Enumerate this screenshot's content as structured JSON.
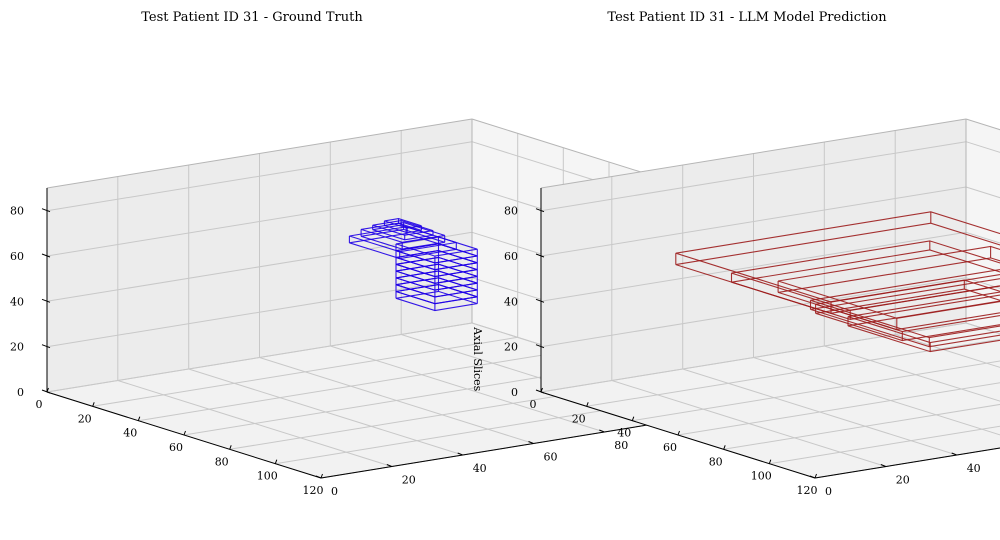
{
  "chart_data": [
    {
      "type": "3d-wireframe",
      "title": "Test Patient ID 31 - Ground Truth",
      "zlabel": "Axial Slices",
      "xlim": [
        0,
        120
      ],
      "ylim": [
        0,
        120
      ],
      "zlim": [
        0,
        90
      ],
      "xticks": [
        "0",
        "20",
        "40",
        "60",
        "80",
        "100",
        "120"
      ],
      "yticks": [
        "0",
        "20",
        "40",
        "60",
        "80",
        "100",
        "120"
      ],
      "zticks": [
        "0",
        "20",
        "40",
        "60",
        "80"
      ],
      "color": "#1f00e6",
      "grid": true,
      "series": [
        {
          "x": [
            66,
            83
          ],
          "y": [
            56,
            68
          ],
          "z": [
            48,
            51
          ]
        },
        {
          "x": [
            66,
            83
          ],
          "y": [
            56,
            68
          ],
          "z": [
            51,
            54
          ]
        },
        {
          "x": [
            66,
            83
          ],
          "y": [
            56,
            68
          ],
          "z": [
            54,
            57
          ]
        },
        {
          "x": [
            66,
            83
          ],
          "y": [
            56,
            68
          ],
          "z": [
            57,
            60
          ]
        },
        {
          "x": [
            66,
            83
          ],
          "y": [
            56,
            68
          ],
          "z": [
            60,
            63
          ]
        },
        {
          "x": [
            66,
            83
          ],
          "y": [
            56,
            68
          ],
          "z": [
            63,
            66
          ]
        },
        {
          "x": [
            66,
            83
          ],
          "y": [
            56,
            68
          ],
          "z": [
            66,
            69
          ]
        },
        {
          "x": [
            66,
            83
          ],
          "y": [
            56,
            68
          ],
          "z": [
            69,
            72
          ]
        },
        {
          "x": [
            58,
            80
          ],
          "y": [
            48,
            64
          ],
          "z": [
            72,
            75
          ]
        },
        {
          "x": [
            60,
            78
          ],
          "y": [
            50,
            62
          ],
          "z": [
            75,
            78
          ]
        },
        {
          "x": [
            62,
            76
          ],
          "y": [
            52,
            60
          ],
          "z": [
            78,
            80
          ]
        },
        {
          "x": [
            64,
            74
          ],
          "y": [
            54,
            58
          ],
          "z": [
            80,
            82
          ]
        }
      ]
    },
    {
      "type": "3d-wireframe",
      "title": "Test Patient ID 31 - LLM Model Prediction",
      "zlabel": "",
      "xlim": [
        0,
        120
      ],
      "ylim": [
        0,
        120
      ],
      "zlim": [
        0,
        90
      ],
      "xticks": [
        "0",
        "20",
        "40",
        "60",
        "80",
        "100",
        "120"
      ],
      "yticks": [
        "0",
        "20",
        "40",
        "60",
        "80",
        "100",
        "120"
      ],
      "zticks": [
        "0",
        "20",
        "40",
        "60",
        "80"
      ],
      "color": "#9c1c1c",
      "grid": true,
      "series": [
        {
          "x": [
            28,
            96
          ],
          "y": [
            20,
            92
          ],
          "z": [
            60,
            65
          ]
        },
        {
          "x": [
            40,
            92
          ],
          "y": [
            28,
            84
          ],
          "z": [
            54,
            58
          ]
        },
        {
          "x": [
            48,
            100
          ],
          "y": [
            36,
            96
          ],
          "z": [
            50,
            55
          ]
        },
        {
          "x": [
            56,
            108
          ],
          "y": [
            40,
            104
          ],
          "z": [
            44,
            48
          ]
        },
        {
          "x": [
            52,
            90
          ],
          "y": [
            44,
            86
          ],
          "z": [
            40,
            44
          ]
        },
        {
          "x": [
            60,
            96
          ],
          "y": [
            48,
            92
          ],
          "z": [
            36,
            40
          ]
        }
      ]
    }
  ]
}
